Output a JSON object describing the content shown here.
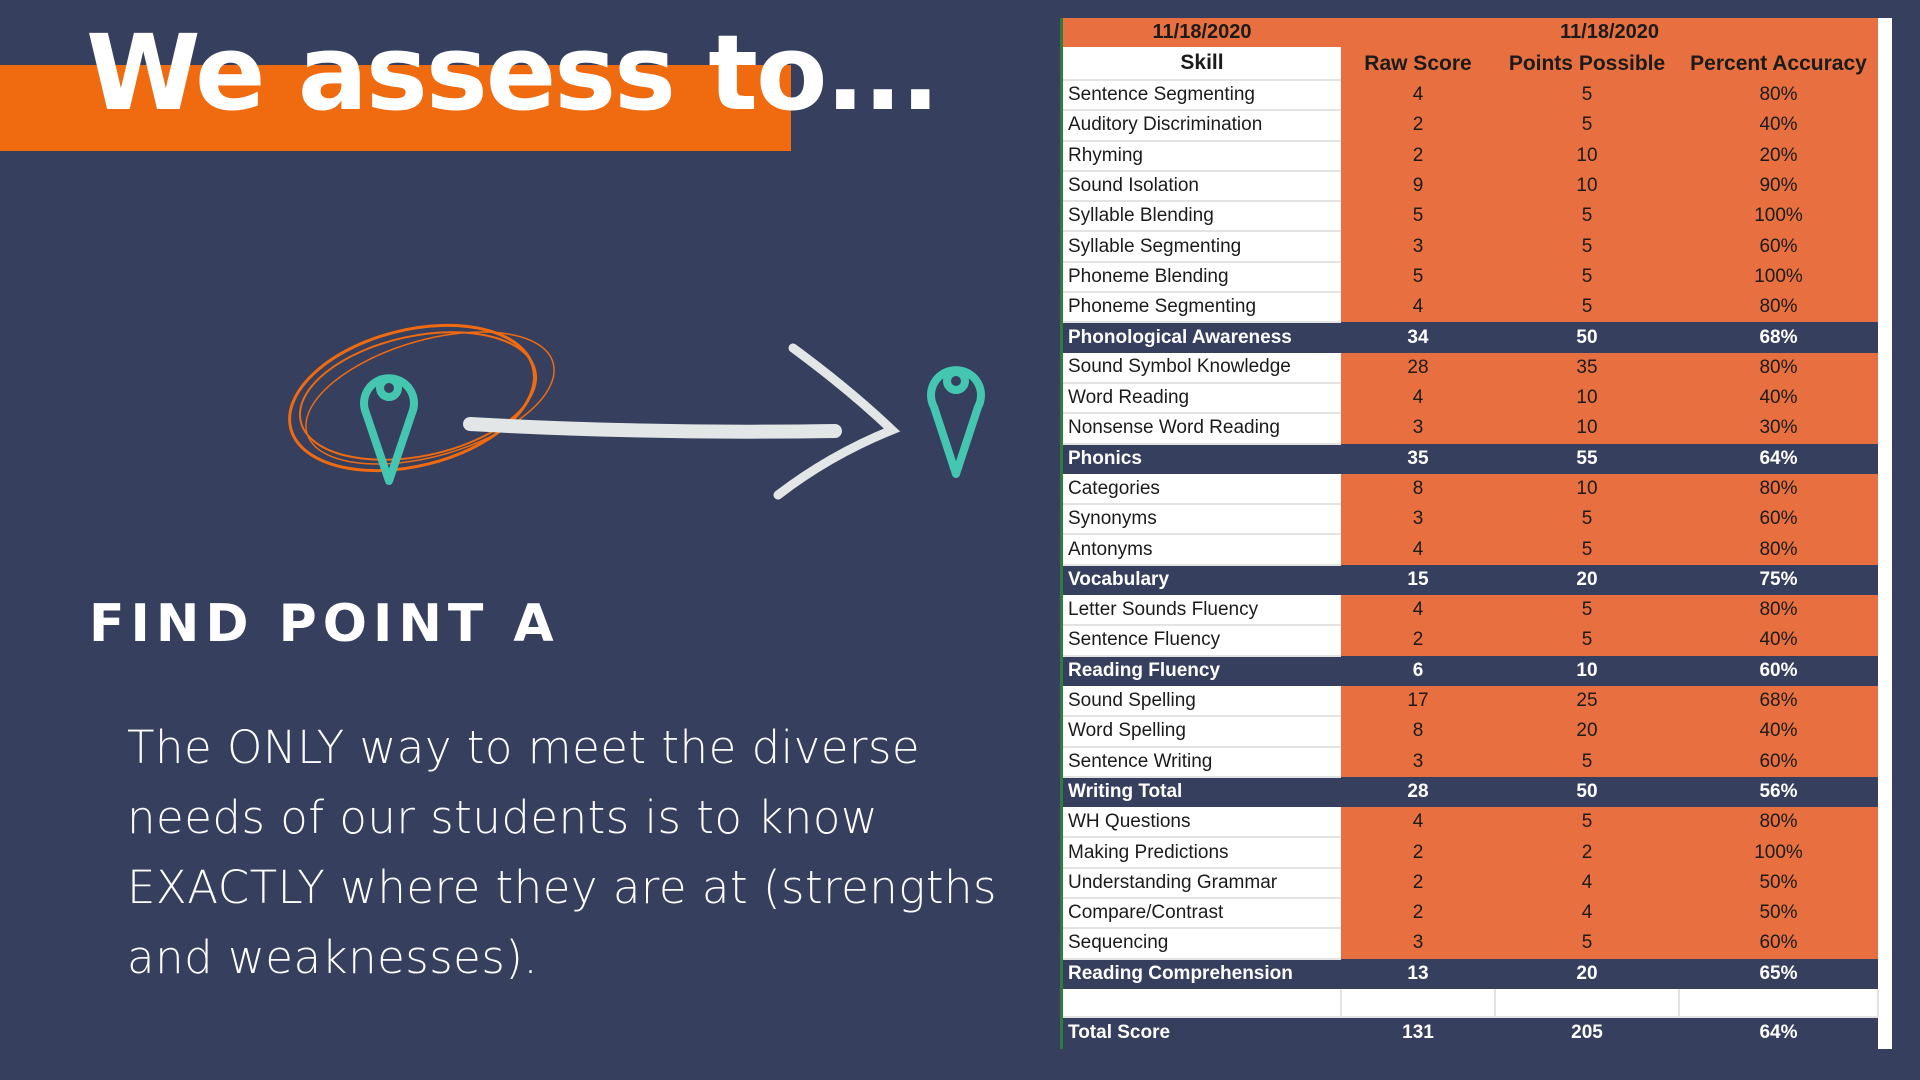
{
  "title": "We assess to...",
  "subtitle": "FIND POINT A",
  "paragraph": "The ONLY way to meet the diverse needs of our students is to know EXACTLY where they are at (strengths and weaknesses).",
  "colors": {
    "background": "#363f5e",
    "accent_orange": "#f06a0f",
    "table_orange": "#e87040",
    "pin_teal": "#45c6b1",
    "arrow": "#e3e6e6"
  },
  "icons": [
    "map-pin-icon-start",
    "circle-scribble",
    "arrow-right-icon",
    "map-pin-icon-end"
  ],
  "table": {
    "date_left": "11/18/2020",
    "date_right": "11/18/2020",
    "headers": [
      "Skill",
      "Raw Score",
      "Points Possible",
      "Percent Accuracy"
    ],
    "rows": [
      {
        "skill": "Sentence Segmenting",
        "raw": "4",
        "possible": "5",
        "percent": "80%"
      },
      {
        "skill": "Auditory Discrimination",
        "raw": "2",
        "possible": "5",
        "percent": "40%"
      },
      {
        "skill": "Rhyming",
        "raw": "2",
        "possible": "10",
        "percent": "20%"
      },
      {
        "skill": "Sound Isolation",
        "raw": "9",
        "possible": "10",
        "percent": "90%"
      },
      {
        "skill": "Syllable Blending",
        "raw": "5",
        "possible": "5",
        "percent": "100%"
      },
      {
        "skill": "Syllable Segmenting",
        "raw": "3",
        "possible": "5",
        "percent": "60%"
      },
      {
        "skill": "Phoneme Blending",
        "raw": "5",
        "possible": "5",
        "percent": "100%"
      },
      {
        "skill": "Phoneme Segmenting",
        "raw": "4",
        "possible": "5",
        "percent": "80%"
      },
      {
        "skill": "Phonological Awareness",
        "raw": "34",
        "possible": "50",
        "percent": "68%",
        "subtotal": true
      },
      {
        "skill": "Sound Symbol Knowledge",
        "raw": "28",
        "possible": "35",
        "percent": "80%"
      },
      {
        "skill": "Word Reading",
        "raw": "4",
        "possible": "10",
        "percent": "40%"
      },
      {
        "skill": "Nonsense Word Reading",
        "raw": "3",
        "possible": "10",
        "percent": "30%"
      },
      {
        "skill": "Phonics",
        "raw": "35",
        "possible": "55",
        "percent": "64%",
        "subtotal": true
      },
      {
        "skill": "Categories",
        "raw": "8",
        "possible": "10",
        "percent": "80%"
      },
      {
        "skill": "Synonyms",
        "raw": "3",
        "possible": "5",
        "percent": "60%"
      },
      {
        "skill": "Antonyms",
        "raw": "4",
        "possible": "5",
        "percent": "80%"
      },
      {
        "skill": "Vocabulary",
        "raw": "15",
        "possible": "20",
        "percent": "75%",
        "subtotal": true
      },
      {
        "skill": "Letter Sounds Fluency",
        "raw": "4",
        "possible": "5",
        "percent": "80%"
      },
      {
        "skill": "Sentence Fluency",
        "raw": "2",
        "possible": "5",
        "percent": "40%"
      },
      {
        "skill": "Reading Fluency",
        "raw": "6",
        "possible": "10",
        "percent": "60%",
        "subtotal": true
      },
      {
        "skill": "Sound Spelling",
        "raw": "17",
        "possible": "25",
        "percent": "68%"
      },
      {
        "skill": "Word Spelling",
        "raw": "8",
        "possible": "20",
        "percent": "40%"
      },
      {
        "skill": "Sentence Writing",
        "raw": "3",
        "possible": "5",
        "percent": "60%"
      },
      {
        "skill": "Writing Total",
        "raw": "28",
        "possible": "50",
        "percent": "56%",
        "subtotal": true
      },
      {
        "skill": "WH Questions",
        "raw": "4",
        "possible": "5",
        "percent": "80%"
      },
      {
        "skill": "Making Predictions",
        "raw": "2",
        "possible": "2",
        "percent": "100%"
      },
      {
        "skill": "Understanding Grammar",
        "raw": "2",
        "possible": "4",
        "percent": "50%"
      },
      {
        "skill": "Compare/Contrast",
        "raw": "2",
        "possible": "4",
        "percent": "50%"
      },
      {
        "skill": "Sequencing",
        "raw": "3",
        "possible": "5",
        "percent": "60%"
      },
      {
        "skill": "Reading Comprehension",
        "raw": "13",
        "possible": "20",
        "percent": "65%",
        "subtotal": true
      }
    ],
    "total": {
      "skill": "Total Score",
      "raw": "131",
      "possible": "205",
      "percent": "64%"
    }
  }
}
